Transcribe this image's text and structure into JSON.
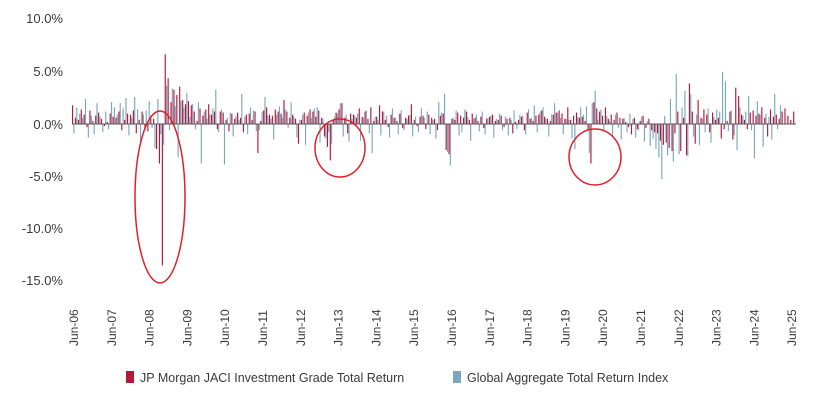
{
  "chart_data": {
    "type": "bar",
    "title": "",
    "xlabel": "",
    "ylabel": "",
    "ylim": [
      -15,
      10
    ],
    "y_ticks": [
      10,
      5,
      0,
      -5,
      -10,
      -15
    ],
    "y_tick_labels": [
      "10.0%",
      "5.0%",
      "0.0%",
      "-5.0%",
      "-10.0%",
      "-15.0%"
    ],
    "x_tick_labels": [
      "Jun-06",
      "Jun-07",
      "Jun-08",
      "Jun-09",
      "Jun-10",
      "Jun-11",
      "Jun-12",
      "Jun-13",
      "Jun-14",
      "Jun-15",
      "Jun-16",
      "Jun-17",
      "Jun-18",
      "Jun-19",
      "Jun-20",
      "Jun-21",
      "Jun-22",
      "Jun-23",
      "Jun-24",
      "Jun-25"
    ],
    "period_start": "2006-06",
    "period_end": "2025-06",
    "frequency": "monthly",
    "grid": false,
    "legend_position": "bottom-center",
    "colors": {
      "jaci": "#b5173b",
      "global": "#7ba7bc",
      "annotation": "#e0202a",
      "axis": "#555555"
    },
    "series": [
      {
        "name": "JP Morgan JACI Investment Grade Total Return",
        "key": "jaci",
        "values": [
          1.8,
          0.6,
          0.4,
          1.4,
          0.9,
          -0.3,
          1.3,
          0.3,
          0.8,
          1.1,
          0.5,
          -0.2,
          0.2,
          1.0,
          0.7,
          0.6,
          1.2,
          -0.6,
          0.4,
          1.0,
          0.9,
          1.3,
          -0.9,
          0.4,
          1.2,
          -0.6,
          -0.7,
          0.8,
          0.5,
          -2.4,
          -3.8,
          -13.6,
          6.7,
          4.4,
          2.1,
          3.3,
          2.8,
          3.6,
          2.3,
          1.9,
          2.2,
          1.8,
          1.2,
          0.3,
          1.5,
          0.8,
          1.4,
          1.9,
          0.9,
          1.2,
          -0.5,
          1.2,
          1.1,
          0.4,
          -0.7,
          1.0,
          0.5,
          1.1,
          0.6,
          -0.8,
          0.9,
          1.0,
          0.4,
          1.2,
          -2.8,
          0.3,
          1.3,
          1.6,
          0.9,
          0.8,
          1.4,
          1.2,
          1.0,
          2.3,
          1.2,
          0.6,
          0.9,
          0.5,
          -1.9,
          0.4,
          1.1,
          0.8,
          1.4,
          1.2,
          0.7,
          1.3,
          0.6,
          -1.2,
          -2.2,
          -3.5,
          0.4,
          1.1,
          1.4,
          2.0,
          0.6,
          -0.9,
          1.0,
          0.9,
          0.6,
          1.5,
          0.7,
          1.2,
          0.5,
          1.6,
          0.3,
          0.7,
          1.8,
          1.2,
          0.4,
          -0.3,
          0.9,
          0.6,
          0.3,
          1.0,
          -0.4,
          0.6,
          0.8,
          1.9,
          0.4,
          -0.2,
          0.7,
          0.8,
          -0.5,
          0.9,
          0.6,
          0.5,
          -0.6,
          0.8,
          1.0,
          -2.5,
          -2.9,
          0.5,
          0.4,
          1.1,
          0.8,
          0.6,
          1.2,
          0.4,
          1.0,
          0.6,
          0.3,
          0.7,
          -0.4,
          0.5,
          0.7,
          0.9,
          0.3,
          0.4,
          0.8,
          -0.3,
          0.5,
          0.6,
          -0.9,
          0.2,
          0.4,
          0.7,
          -0.6,
          1.1,
          0.5,
          0.3,
          0.8,
          0.9,
          1.3,
          0.7,
          0.5,
          0.3,
          0.9,
          1.1,
          1.3,
          1.0,
          0.5,
          1.6,
          0.4,
          0.8,
          1.1,
          0.6,
          0.7,
          0.3,
          -0.6,
          -3.8,
          2.1,
          1.5,
          1.2,
          0.8,
          1.6,
          0.5,
          0.9,
          0.4,
          1.1,
          0.6,
          0.5,
          0.2,
          -0.3,
          -1.0,
          0.6,
          -0.5,
          0.3,
          0.8,
          -0.4,
          0.5,
          -0.6,
          -0.8,
          -0.9,
          -1.6,
          -2.0,
          -1.8,
          -2.3,
          -2.6,
          -0.9,
          1.2,
          -2.6,
          0.6,
          -3.0,
          3.9,
          1.2,
          -1.9,
          2.3,
          0.6,
          1.4,
          0.9,
          -0.8,
          1.1,
          0.4,
          0.6,
          -1.4,
          -0.5,
          0.3,
          1.2,
          -1.5,
          3.5,
          2.7,
          0.9,
          0.4,
          -0.5,
          1.1,
          1.3,
          0.8,
          1.0,
          1.6,
          0.6,
          -1.2,
          1.4,
          0.7,
          0.9,
          0.5,
          1.2,
          1.5,
          0.8,
          0.4,
          1.2
        ]
      },
      {
        "name": "Global Aggregate Total Return Index",
        "key": "global",
        "values": [
          -0.9,
          1.6,
          1.0,
          0.6,
          2.4,
          -1.3,
          0.8,
          -1.0,
          2.0,
          0.7,
          -0.8,
          1.2,
          -0.5,
          2.1,
          1.6,
          0.9,
          2.0,
          1.5,
          2.5,
          -1.1,
          0.6,
          2.6,
          1.4,
          -1.9,
          0.9,
          1.3,
          2.2,
          -0.4,
          -2.3,
          2.4,
          -1.0,
          -2.0,
          3.7,
          -0.6,
          3.4,
          1.7,
          -3.2,
          2.2,
          1.6,
          3.0,
          0.7,
          1.9,
          -0.5,
          2.1,
          -3.8,
          1.2,
          0.5,
          0.9,
          1.5,
          3.3,
          -0.8,
          1.4,
          -3.9,
          0.6,
          1.1,
          -1.2,
          0.8,
          0.4,
          2.9,
          0.7,
          -1.0,
          1.6,
          1.3,
          -0.7,
          -0.6,
          1.2,
          2.6,
          0.8,
          0.5,
          -1.5,
          0.9,
          1.7,
          0.6,
          1.4,
          -0.4,
          2.1,
          0.7,
          -1.3,
          0.4,
          0.9,
          -2.0,
          1.1,
          0.6,
          1.5,
          1.6,
          -1.8,
          0.5,
          -1.4,
          -0.8,
          -1.9,
          0.7,
          1.0,
          2.0,
          -1.2,
          0.9,
          -1.7,
          0.5,
          0.8,
          1.0,
          -1.6,
          0.6,
          1.3,
          -0.9,
          -2.8,
          0.7,
          0.4,
          -1.1,
          1.2,
          0.8,
          -1.3,
          1.5,
          0.6,
          -1.0,
          1.3,
          -0.6,
          0.5,
          0.9,
          -1.2,
          0.7,
          -0.8,
          1.5,
          0.6,
          1.2,
          -1.0,
          0.4,
          -1.4,
          2.1,
          1.1,
          2.9,
          -2.7,
          -4.0,
          0.6,
          1.3,
          -1.1,
          -0.8,
          1.4,
          0.7,
          -1.6,
          0.5,
          0.9,
          -0.7,
          1.2,
          -1.0,
          0.6,
          0.8,
          -1.3,
          0.5,
          1.0,
          -0.6,
          0.7,
          -1.1,
          0.4,
          1.3,
          -0.5,
          0.9,
          0.8,
          -1.0,
          1.4,
          0.6,
          1.8,
          -0.8,
          1.2,
          1.6,
          0.5,
          -1.2,
          0.9,
          2.0,
          1.1,
          0.6,
          -1.0,
          0.5,
          0.4,
          -1.4,
          -2.4,
          0.7,
          1.6,
          0.9,
          1.7,
          -2.8,
          2.0,
          3.2,
          0.4,
          1.4,
          -0.6,
          0.8,
          0.3,
          -1.2,
          0.9,
          -0.4,
          -1.5,
          0.6,
          -0.8,
          1.0,
          0.5,
          -1.3,
          -0.6,
          0.7,
          -1.7,
          0.3,
          -2.1,
          -1.4,
          -2.4,
          -3.2,
          -5.3,
          0.8,
          -3.0,
          2.4,
          -3.6,
          4.8,
          -2.9,
          1.6,
          3.2,
          -3.1,
          2.9,
          -1.2,
          0.9,
          -2.0,
          0.5,
          -0.8,
          1.5,
          -1.8,
          0.7,
          1.4,
          1.2,
          5.0,
          4.1,
          -0.7,
          1.3,
          -1.1,
          -2.5,
          1.6,
          0.8,
          1.2,
          2.7,
          -0.6,
          -3.3,
          2.2,
          0.9,
          -2.2,
          1.0,
          0.7,
          -1.5,
          2.9,
          -0.5,
          1.8
        ]
      }
    ]
  }
}
